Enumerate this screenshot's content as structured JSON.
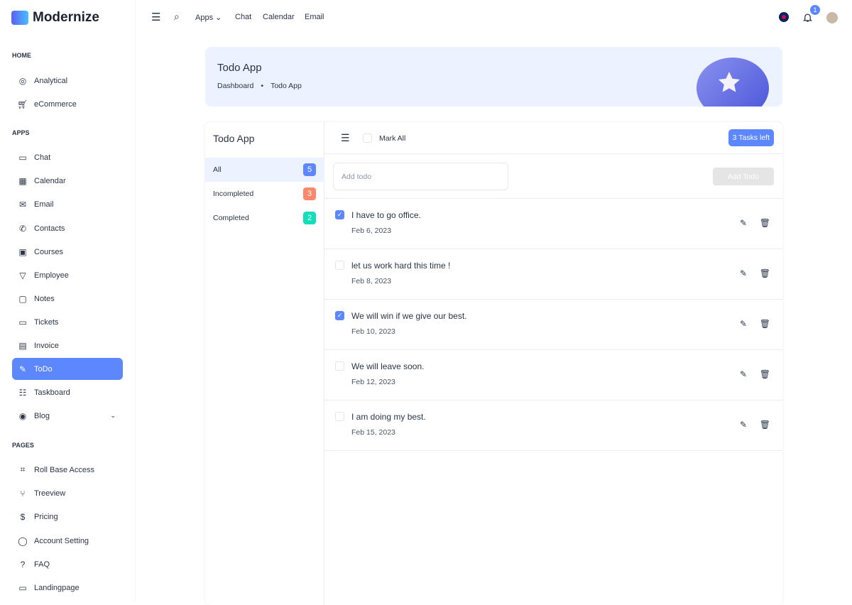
{
  "brand": "Modernize",
  "sidebar": {
    "sections": [
      {
        "title": "HOME",
        "items": [
          {
            "label": "Analytical",
            "icon": "aperture-icon"
          },
          {
            "label": "eCommerce",
            "icon": "cart-icon"
          }
        ]
      },
      {
        "title": "APPS",
        "items": [
          {
            "label": "Chat",
            "icon": "message-icon"
          },
          {
            "label": "Calendar",
            "icon": "calendar-icon"
          },
          {
            "label": "Email",
            "icon": "mail-icon"
          },
          {
            "label": "Contacts",
            "icon": "phone-icon"
          },
          {
            "label": "Courses",
            "icon": "certificate-icon"
          },
          {
            "label": "Employee",
            "icon": "brand-icon"
          },
          {
            "label": "Notes",
            "icon": "note-icon"
          },
          {
            "label": "Tickets",
            "icon": "ticket-icon"
          },
          {
            "label": "Invoice",
            "icon": "file-icon"
          },
          {
            "label": "ToDo",
            "icon": "edit-icon",
            "active": true
          },
          {
            "label": "Taskboard",
            "icon": "checklist-icon"
          },
          {
            "label": "Blog",
            "icon": "chrome-icon",
            "expandable": true
          }
        ]
      },
      {
        "title": "PAGES",
        "items": [
          {
            "label": "Roll Base Access",
            "icon": "user-scan-icon"
          },
          {
            "label": "Treeview",
            "icon": "git-branch-icon"
          },
          {
            "label": "Pricing",
            "icon": "dollar-icon"
          },
          {
            "label": "Account Setting",
            "icon": "user-circle-icon"
          },
          {
            "label": "FAQ",
            "icon": "help-icon"
          },
          {
            "label": "Landingpage",
            "icon": "app-window-icon"
          }
        ]
      }
    ]
  },
  "topbar": {
    "apps": "Apps",
    "chat": "Chat",
    "calendar": "Calendar",
    "email": "Email",
    "notifications": "1"
  },
  "banner": {
    "title": "Todo App",
    "crumbs": [
      "Dashboard",
      "Todo App"
    ]
  },
  "todo": {
    "title": "Todo App",
    "filters": [
      {
        "label": "All",
        "count": "5",
        "color": "#5d87ff"
      },
      {
        "label": "Incompleted",
        "count": "3",
        "color": "#fa896b"
      },
      {
        "label": "Completed",
        "count": "2",
        "color": "#13deb9"
      }
    ],
    "mark_all": "Mark All",
    "tasks_left": "3 Tasks left",
    "add_placeholder": "Add todo",
    "add_button": "Add Todo",
    "items": [
      {
        "title": "I have to go office.",
        "date": "Feb 6, 2023",
        "done": true
      },
      {
        "title": "let us work hard this time !",
        "date": "Feb 8, 2023",
        "done": false
      },
      {
        "title": "We will win if we give our best.",
        "date": "Feb 10, 2023",
        "done": true
      },
      {
        "title": "We will leave soon.",
        "date": "Feb 12, 2023",
        "done": false
      },
      {
        "title": "I am doing my best.",
        "date": "Feb 15, 2023",
        "done": false
      }
    ]
  }
}
